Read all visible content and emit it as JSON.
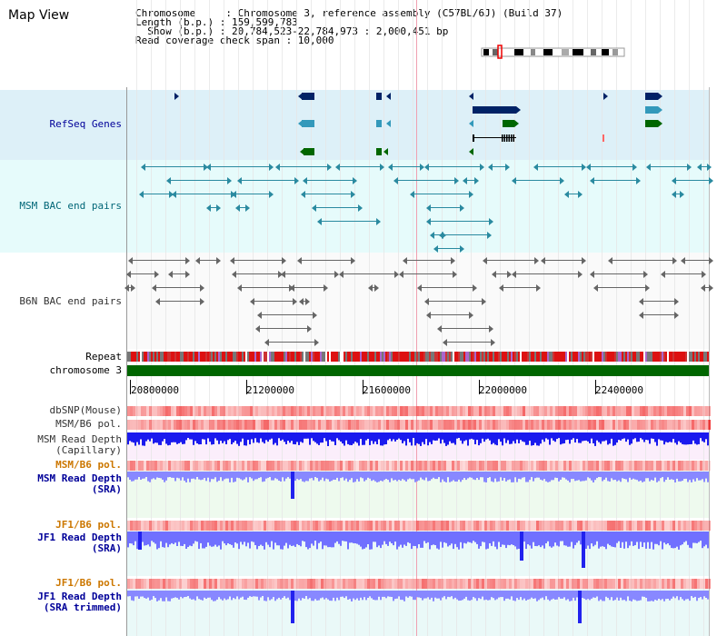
{
  "header": {
    "title": "Map View",
    "chromosome_line": "Chromosome     : Chromosome 3, reference assembly (C57BL/6J) (Build 37)",
    "length_line": "Length (b.p.) : 159,599,783",
    "show_line": "  Show (b.p.) : 20,784,523-22,784,973 : 2,000,451 bp",
    "coverage_line": "Read coverage check span : 10,000"
  },
  "tracks": {
    "refseq": "RefSeq Genes",
    "msm_bac": "MSM BAC end pairs",
    "b6n_bac": "B6N BAC end pairs",
    "repeat": "Repeat",
    "chromosome": "chromosome 3",
    "dbsnp": "dbSNP(Mouse)",
    "msm_pol": "MSM/B6 pol.",
    "msm_depth_cap": "MSM Read Depth\n(Capillary)",
    "msm_pol2": "MSM/B6 pol.",
    "msm_depth_sra": "MSM Read Depth\n(SRA)",
    "jf1_pol": "JF1/B6 pol.",
    "jf1_depth_sra": "JF1 Read Depth\n(SRA)",
    "jf1_pol2": "JF1/B6 pol.",
    "jf1_depth_trim": "JF1 Read Depth\n(SRA trimmed)"
  },
  "axis": {
    "ticks": [
      "20800000",
      "21200000",
      "21600000",
      "22000000",
      "22400000"
    ]
  },
  "colors": {
    "refseq_bg": "#ddf0f8",
    "msm_bac_bg": "#e6fbfb",
    "depth_cap_bg": "#fbeefb",
    "depth_sra_bg": "#eefaee",
    "depth_jf1_bg": "#eaf9f8",
    "depth_bar": "#2222ee",
    "depth_light": "#8888ff",
    "chromosome": "#006600",
    "gene_navy": "#002266",
    "gene_teal": "#3399bb",
    "gene_green": "#006600"
  }
}
